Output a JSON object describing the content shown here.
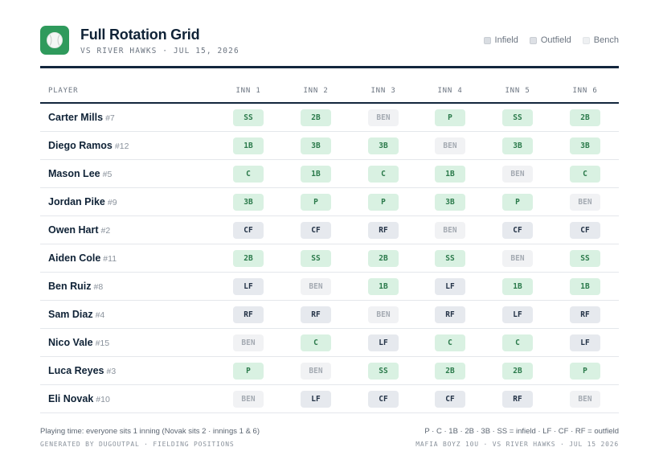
{
  "header": {
    "title": "Full Rotation Grid",
    "subtitle": "VS RIVER HAWKS · JUL 15, 2026",
    "logo_icon": "baseball-icon"
  },
  "legend": [
    {
      "key": "infield",
      "label": "Infield"
    },
    {
      "key": "outfield",
      "label": "Outfield"
    },
    {
      "key": "bench",
      "label": "Bench"
    }
  ],
  "colors": {
    "accent": "#2f9a5c",
    "infield_bg": "#d9f1e2",
    "infield_text": "#2b7a4b",
    "outfield_bg": "#e6e9ee",
    "bench_bg": "#f1f2f4",
    "rule": "#13263d"
  },
  "table": {
    "player_header": "PLAYER",
    "inning_headers": [
      "INN 1",
      "INN 2",
      "INN 3",
      "INN 4",
      "INN 5",
      "INN 6"
    ],
    "rows": [
      {
        "name": "Carter Mills",
        "number": "#7",
        "positions": [
          "SS",
          "2B",
          "BEN",
          "P",
          "SS",
          "2B"
        ]
      },
      {
        "name": "Diego Ramos",
        "number": "#12",
        "positions": [
          "1B",
          "3B",
          "3B",
          "BEN",
          "3B",
          "3B"
        ]
      },
      {
        "name": "Mason Lee",
        "number": "#5",
        "positions": [
          "C",
          "1B",
          "C",
          "1B",
          "BEN",
          "C"
        ]
      },
      {
        "name": "Jordan Pike",
        "number": "#9",
        "positions": [
          "3B",
          "P",
          "P",
          "3B",
          "P",
          "BEN"
        ]
      },
      {
        "name": "Owen Hart",
        "number": "#2",
        "positions": [
          "CF",
          "CF",
          "RF",
          "BEN",
          "CF",
          "CF"
        ]
      },
      {
        "name": "Aiden Cole",
        "number": "#11",
        "positions": [
          "2B",
          "SS",
          "2B",
          "SS",
          "BEN",
          "SS"
        ]
      },
      {
        "name": "Ben Ruiz",
        "number": "#8",
        "positions": [
          "LF",
          "BEN",
          "1B",
          "LF",
          "1B",
          "1B"
        ]
      },
      {
        "name": "Sam Diaz",
        "number": "#4",
        "positions": [
          "RF",
          "RF",
          "BEN",
          "RF",
          "LF",
          "RF"
        ]
      },
      {
        "name": "Nico Vale",
        "number": "#15",
        "positions": [
          "BEN",
          "C",
          "LF",
          "C",
          "C",
          "LF"
        ]
      },
      {
        "name": "Luca Reyes",
        "number": "#3",
        "positions": [
          "P",
          "BEN",
          "SS",
          "2B",
          "2B",
          "P"
        ]
      },
      {
        "name": "Eli Novak",
        "number": "#10",
        "positions": [
          "BEN",
          "LF",
          "CF",
          "CF",
          "RF",
          "BEN"
        ]
      }
    ]
  },
  "footer": {
    "note": "Playing time: everyone sits 1 inning (Novak sits 2 · innings 1 & 6)",
    "generated": "GENERATED BY DUGOUTPAL · FIELDING POSITIONS",
    "key": "P · C · 1B · 2B · 3B · SS = infield  ·  LF · CF · RF = outfield",
    "team_line": "MAFIA BOYZ 10U · VS RIVER HAWKS · JUL 15 2026"
  }
}
